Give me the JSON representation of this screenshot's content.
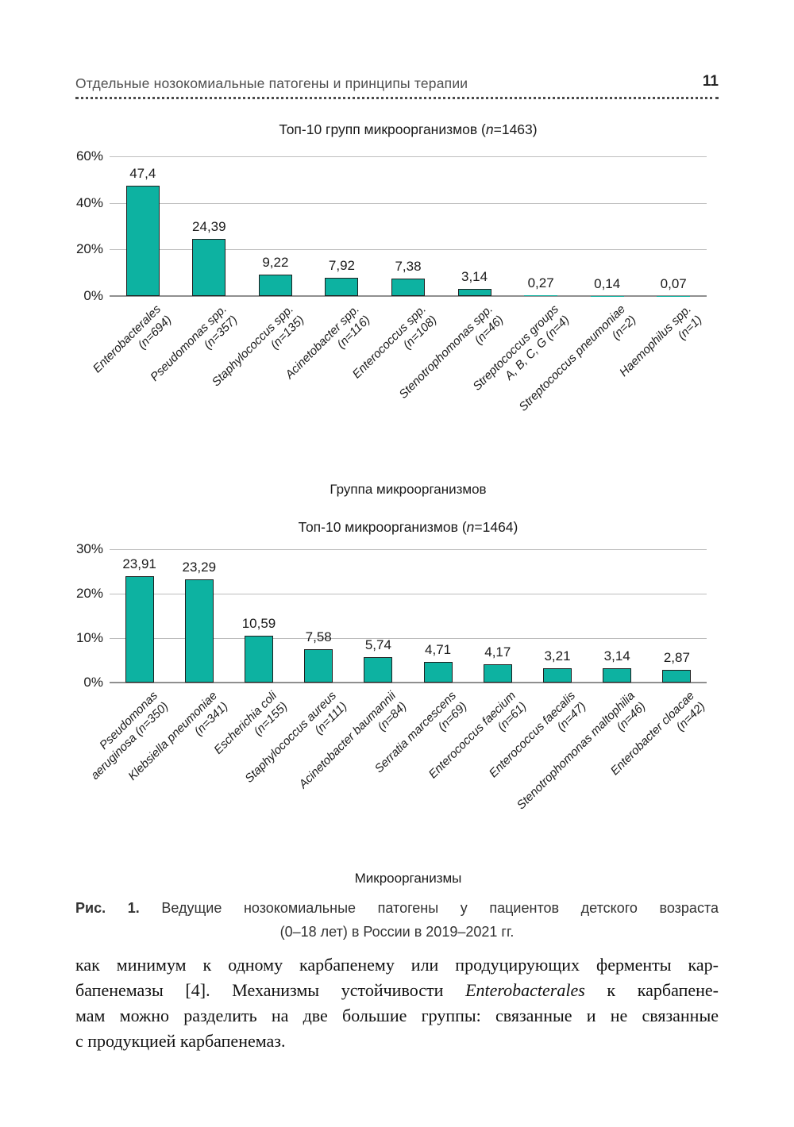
{
  "page_header": {
    "title": "Отдельные нозокомиальные патогены и принципы терапии",
    "page_number": "11"
  },
  "chart_data": [
    {
      "type": "bar",
      "title": "Топ-10 групп микроорганизмов (n=1463)",
      "xlabel": "Группа микроорганизмов",
      "ylabel": "",
      "ylim": [
        0,
        60
      ],
      "yticks": [
        {
          "v": 0,
          "label": "0%"
        },
        {
          "v": 20,
          "label": "20%"
        },
        {
          "v": 40,
          "label": "40%"
        },
        {
          "v": 60,
          "label": "60%"
        }
      ],
      "grid": true,
      "legend": "none",
      "bar_color": "#0db2a1",
      "categories": [
        [
          "Enterobacterales",
          "(n=694)"
        ],
        [
          "Pseudomonas spp.",
          "(n=357)"
        ],
        [
          "Staphylococcus spp.",
          "(n=135)"
        ],
        [
          "Acinetobacter spp.",
          "(n=116)"
        ],
        [
          "Enterococcus spp.",
          "(n=108)"
        ],
        [
          "Stenotrophomonas spp.",
          "(n=46)"
        ],
        [
          "Streptococcus groups",
          "A, B, C, G (n=4)"
        ],
        [
          "Streptococcus pneumoniae",
          "(n=2)"
        ],
        [
          "Haemophilus spp.",
          "(n=1)"
        ]
      ],
      "values": [
        47.4,
        24.39,
        9.22,
        7.92,
        7.38,
        3.14,
        0.27,
        0.14,
        0.07
      ],
      "value_labels": [
        "47,4",
        "24,39",
        "9,22",
        "7,92",
        "7,38",
        "3,14",
        "0,27",
        "0,14",
        "0,07"
      ]
    },
    {
      "type": "bar",
      "title": "Топ-10 микроорганизмов (n=1464)",
      "xlabel": "Микроорганизмы",
      "ylabel": "",
      "ylim": [
        0,
        30
      ],
      "yticks": [
        {
          "v": 0,
          "label": "0%"
        },
        {
          "v": 10,
          "label": "10%"
        },
        {
          "v": 20,
          "label": "20%"
        },
        {
          "v": 30,
          "label": "30%"
        }
      ],
      "grid": true,
      "legend": "none",
      "bar_color": "#0db2a1",
      "categories": [
        [
          "Pseudomonas",
          "aeruginosa (n=350)"
        ],
        [
          "Klebsiella pneumoniae",
          "(n=341)"
        ],
        [
          "Escherichia coli",
          "(n=155)"
        ],
        [
          "Staphylococcus aureus",
          "(n=111)"
        ],
        [
          "Acinetobacter baumannii",
          "(n=84)"
        ],
        [
          "Serratia marcescens",
          "(n=69)"
        ],
        [
          "Enterococcus faecium",
          "(n=61)"
        ],
        [
          "Enterococcus faecalis",
          "(n=47)"
        ],
        [
          "Stenotrophomonas maltophilia",
          "(n=46)"
        ],
        [
          "Enterobacter cloacae",
          "(n=42)"
        ]
      ],
      "values": [
        23.91,
        23.29,
        10.59,
        7.58,
        5.74,
        4.71,
        4.17,
        3.21,
        3.14,
        2.87
      ],
      "value_labels": [
        "23,91",
        "23,29",
        "10,59",
        "7,58",
        "5,74",
        "4,71",
        "4,17",
        "3,21",
        "3,14",
        "2,87"
      ]
    }
  ],
  "figure_caption": {
    "label": "Рис. 1.",
    "text": "Ведущие нозокомиальные патогены у пациентов детского возраста",
    "line2": "(0–18 лет) в России в 2019–2021 гг."
  },
  "body_text": {
    "lines": [
      {
        "justify": true,
        "segments": [
          {
            "t": "как минимум к одному карбапенему или продуцирующих ферменты кар-"
          }
        ]
      },
      {
        "justify": true,
        "segments": [
          {
            "t": "бапенемазы [4]. Механизмы устойчивости "
          },
          {
            "t": "Enterobacterales",
            "i": true
          },
          {
            "t": " к карбапене-"
          }
        ]
      },
      {
        "justify": true,
        "segments": [
          {
            "t": "мам можно разделить на две большие группы: связанные и не связанные"
          }
        ]
      },
      {
        "justify": false,
        "segments": [
          {
            "t": "с продукцией карбапенемаз."
          }
        ]
      }
    ]
  }
}
